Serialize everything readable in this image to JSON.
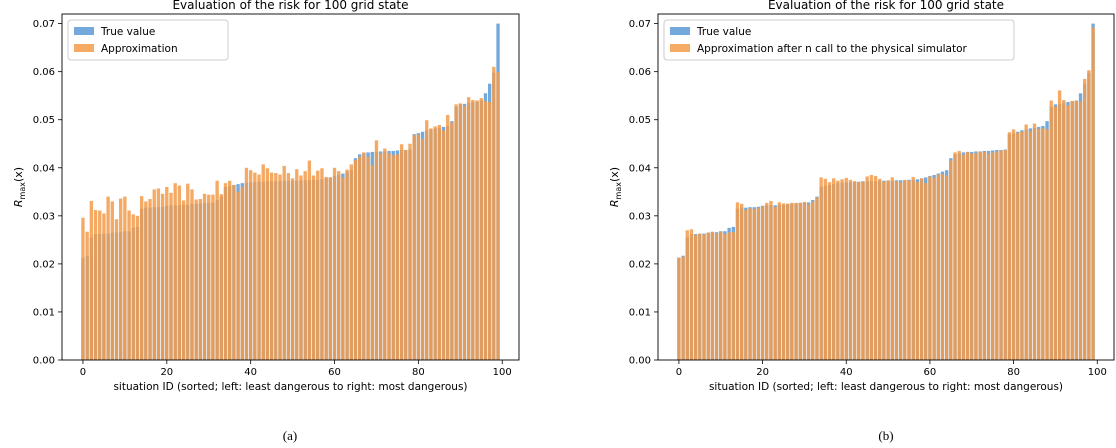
{
  "colors": {
    "true_value": "#5b9bd5",
    "approximation": "#f39c4a"
  },
  "chart_data": [
    {
      "type": "bar",
      "title": "Evaluation of the risk for 100 grid state",
      "xlabel": "situation ID (sorted; left: least dangerous to right: most dangerous)",
      "ylabel": "R_max(x)",
      "ylabel_main": "R",
      "ylabel_sub": "max",
      "ylabel_arg": "(x)",
      "caption": "(a)",
      "xlim": [
        -5,
        104
      ],
      "ylim": [
        0,
        0.072
      ],
      "xticks": [
        0,
        20,
        40,
        60,
        80,
        100
      ],
      "xtick_labels": [
        "0",
        "20",
        "40",
        "60",
        "80",
        "100"
      ],
      "yticks": [
        0,
        0.01,
        0.02,
        0.03,
        0.04,
        0.05,
        0.06,
        0.07
      ],
      "ytick_labels": [
        "0.00",
        "0.01",
        "0.02",
        "0.03",
        "0.04",
        "0.05",
        "0.06",
        "0.07"
      ],
      "legend_position": "top-left",
      "series": [
        {
          "name": "True value",
          "color": "#5b9bd5",
          "values": [
            0.0213,
            0.0217,
            0.0255,
            0.0262,
            0.0262,
            0.0263,
            0.0263,
            0.0265,
            0.0266,
            0.0266,
            0.0268,
            0.0268,
            0.0275,
            0.0277,
            0.0315,
            0.0317,
            0.0317,
            0.0318,
            0.0318,
            0.0319,
            0.0321,
            0.0322,
            0.0322,
            0.0322,
            0.0323,
            0.0323,
            0.0325,
            0.0325,
            0.0326,
            0.0327,
            0.0327,
            0.0328,
            0.0333,
            0.034,
            0.036,
            0.0362,
            0.0364,
            0.0366,
            0.0368,
            0.0369,
            0.037,
            0.037,
            0.0371,
            0.0371,
            0.0372,
            0.0372,
            0.0372,
            0.0372,
            0.0373,
            0.0373,
            0.0373,
            0.0373,
            0.0374,
            0.0374,
            0.0374,
            0.0375,
            0.0375,
            0.0376,
            0.0378,
            0.038,
            0.0383,
            0.0385,
            0.0388,
            0.0392,
            0.0395,
            0.042,
            0.0428,
            0.043,
            0.0432,
            0.0433,
            0.0433,
            0.0434,
            0.0434,
            0.0435,
            0.0435,
            0.0436,
            0.0437,
            0.0437,
            0.0438,
            0.047,
            0.0472,
            0.0475,
            0.0478,
            0.048,
            0.0482,
            0.0483,
            0.0485,
            0.0487,
            0.0497,
            0.0527,
            0.0532,
            0.0533,
            0.0535,
            0.0537,
            0.0538,
            0.054,
            0.0555,
            0.0575,
            0.0598,
            0.07
          ]
        },
        {
          "name": "Approximation",
          "color": "#f39c4a",
          "values": [
            0.0296,
            0.0267,
            0.0331,
            0.0312,
            0.0311,
            0.0305,
            0.034,
            0.033,
            0.0293,
            0.0336,
            0.034,
            0.0311,
            0.0303,
            0.03,
            0.0341,
            0.033,
            0.0335,
            0.0355,
            0.0357,
            0.0346,
            0.036,
            0.0348,
            0.0368,
            0.0363,
            0.0332,
            0.0367,
            0.0355,
            0.0334,
            0.0335,
            0.0346,
            0.0344,
            0.0344,
            0.0373,
            0.0345,
            0.0368,
            0.0373,
            0.0364,
            0.035,
            0.036,
            0.04,
            0.0395,
            0.039,
            0.0386,
            0.0407,
            0.0399,
            0.039,
            0.0389,
            0.0386,
            0.0404,
            0.0389,
            0.0378,
            0.0397,
            0.0384,
            0.0393,
            0.0415,
            0.0384,
            0.0394,
            0.0399,
            0.0381,
            0.038,
            0.04,
            0.0393,
            0.038,
            0.0396,
            0.0407,
            0.0416,
            0.0423,
            0.0432,
            0.0423,
            0.0405,
            0.0457,
            0.043,
            0.044,
            0.043,
            0.0426,
            0.0428,
            0.0449,
            0.0437,
            0.045,
            0.0468,
            0.0469,
            0.046,
            0.0499,
            0.0482,
            0.0486,
            0.0489,
            0.0478,
            0.051,
            0.0494,
            0.0532,
            0.0534,
            0.0529,
            0.0547,
            0.0541,
            0.054,
            0.0545,
            0.0539,
            0.0537,
            0.061,
            0.0599
          ]
        }
      ]
    },
    {
      "type": "bar",
      "title": "Evaluation of the risk for 100 grid state",
      "xlabel": "situation ID (sorted; left: least dangerous to right: most dangerous)",
      "ylabel": "R_max(x)",
      "ylabel_main": "R",
      "ylabel_sub": "max",
      "ylabel_arg": "(x)",
      "caption": "(b)",
      "xlim": [
        -5,
        104
      ],
      "ylim": [
        0,
        0.072
      ],
      "xticks": [
        0,
        20,
        40,
        60,
        80,
        100
      ],
      "xtick_labels": [
        "0",
        "20",
        "40",
        "60",
        "80",
        "100"
      ],
      "yticks": [
        0,
        0.01,
        0.02,
        0.03,
        0.04,
        0.05,
        0.06,
        0.07
      ],
      "ytick_labels": [
        "0.00",
        "0.01",
        "0.02",
        "0.03",
        "0.04",
        "0.05",
        "0.06",
        "0.07"
      ],
      "legend_position": "top-left",
      "series": [
        {
          "name": "True value",
          "color": "#5b9bd5",
          "values": [
            0.0213,
            0.0217,
            0.0255,
            0.0262,
            0.0262,
            0.0263,
            0.0263,
            0.0265,
            0.0266,
            0.0266,
            0.0268,
            0.0268,
            0.0275,
            0.0277,
            0.0315,
            0.0317,
            0.0317,
            0.0318,
            0.0318,
            0.0319,
            0.0321,
            0.0322,
            0.0322,
            0.0322,
            0.0323,
            0.0323,
            0.0325,
            0.0325,
            0.0326,
            0.0327,
            0.0327,
            0.0328,
            0.0333,
            0.034,
            0.036,
            0.0362,
            0.0364,
            0.0366,
            0.0368,
            0.0369,
            0.037,
            0.037,
            0.0371,
            0.0371,
            0.0372,
            0.0372,
            0.0372,
            0.0372,
            0.0373,
            0.0373,
            0.0373,
            0.0373,
            0.0374,
            0.0374,
            0.0374,
            0.0375,
            0.0375,
            0.0376,
            0.0378,
            0.038,
            0.0383,
            0.0385,
            0.0388,
            0.0392,
            0.0395,
            0.042,
            0.0428,
            0.043,
            0.0432,
            0.0433,
            0.0433,
            0.0434,
            0.0434,
            0.0435,
            0.0435,
            0.0436,
            0.0437,
            0.0437,
            0.0438,
            0.047,
            0.0472,
            0.0475,
            0.0478,
            0.048,
            0.0482,
            0.0483,
            0.0485,
            0.0487,
            0.0497,
            0.0527,
            0.0532,
            0.0533,
            0.0535,
            0.0537,
            0.0538,
            0.054,
            0.0555,
            0.0575,
            0.0598,
            0.07
          ]
        },
        {
          "name": "Approximation after n call to the physical simulator",
          "color": "#f39c4a",
          "values": [
            0.0213,
            0.0215,
            0.027,
            0.0272,
            0.026,
            0.0263,
            0.0261,
            0.0265,
            0.0267,
            0.0264,
            0.0267,
            0.0262,
            0.0266,
            0.0266,
            0.0328,
            0.0325,
            0.0312,
            0.0316,
            0.0314,
            0.0317,
            0.032,
            0.0327,
            0.0331,
            0.0318,
            0.0328,
            0.0326,
            0.0325,
            0.0327,
            0.0327,
            0.0327,
            0.0329,
            0.0324,
            0.033,
            0.0338,
            0.038,
            0.0377,
            0.037,
            0.0378,
            0.0373,
            0.0376,
            0.0379,
            0.0375,
            0.0372,
            0.037,
            0.0371,
            0.0382,
            0.0385,
            0.0383,
            0.0377,
            0.0371,
            0.0374,
            0.038,
            0.0372,
            0.037,
            0.0375,
            0.0373,
            0.0381,
            0.037,
            0.0378,
            0.0368,
            0.0382,
            0.0379,
            0.0386,
            0.0387,
            0.0384,
            0.0415,
            0.0432,
            0.0435,
            0.0427,
            0.0433,
            0.043,
            0.043,
            0.0434,
            0.0433,
            0.043,
            0.0432,
            0.0434,
            0.0436,
            0.0437,
            0.0474,
            0.048,
            0.0473,
            0.0475,
            0.049,
            0.0476,
            0.0492,
            0.0481,
            0.0482,
            0.048,
            0.054,
            0.0527,
            0.0561,
            0.0541,
            0.053,
            0.0539,
            0.054,
            0.0538,
            0.0585,
            0.0603,
            0.0692
          ]
        }
      ]
    }
  ]
}
